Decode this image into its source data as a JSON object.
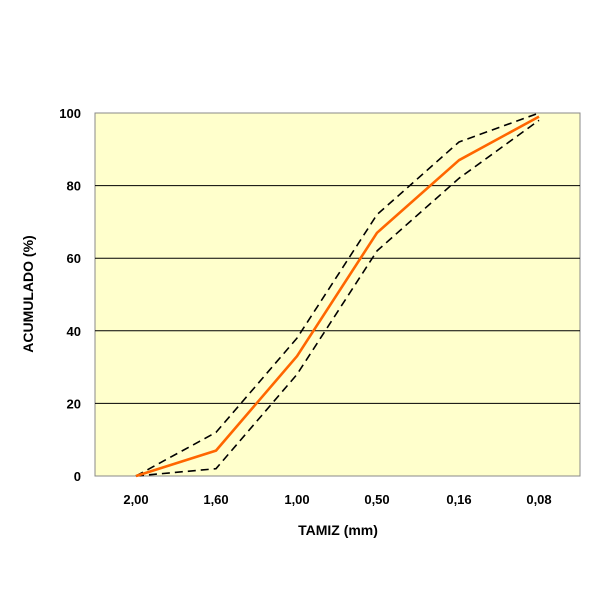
{
  "chart_data": {
    "type": "line",
    "title": "",
    "xlabel": "TAMIZ (mm)",
    "ylabel": "ACUMULADO (%)",
    "categories": [
      "2,00",
      "1,60",
      "1,00",
      "0,50",
      "0,16",
      "0,08"
    ],
    "ylim": [
      0,
      100
    ],
    "yticks": [
      0,
      20,
      40,
      60,
      80,
      100
    ],
    "grid": true,
    "legend": "none",
    "series": [
      {
        "style": "solid",
        "color": "#ff6600",
        "values": [
          0,
          7,
          33,
          67,
          87,
          99
        ]
      },
      {
        "style": "dashed",
        "color": "#000000",
        "values": [
          0,
          12,
          38,
          72,
          92,
          100
        ]
      },
      {
        "style": "dashed",
        "color": "#000000",
        "values": [
          0,
          2,
          28,
          62,
          82,
          98
        ]
      }
    ],
    "colors": {
      "plot_background": "#ffffcc",
      "gridline": "#000000",
      "frame": "#888888"
    }
  }
}
